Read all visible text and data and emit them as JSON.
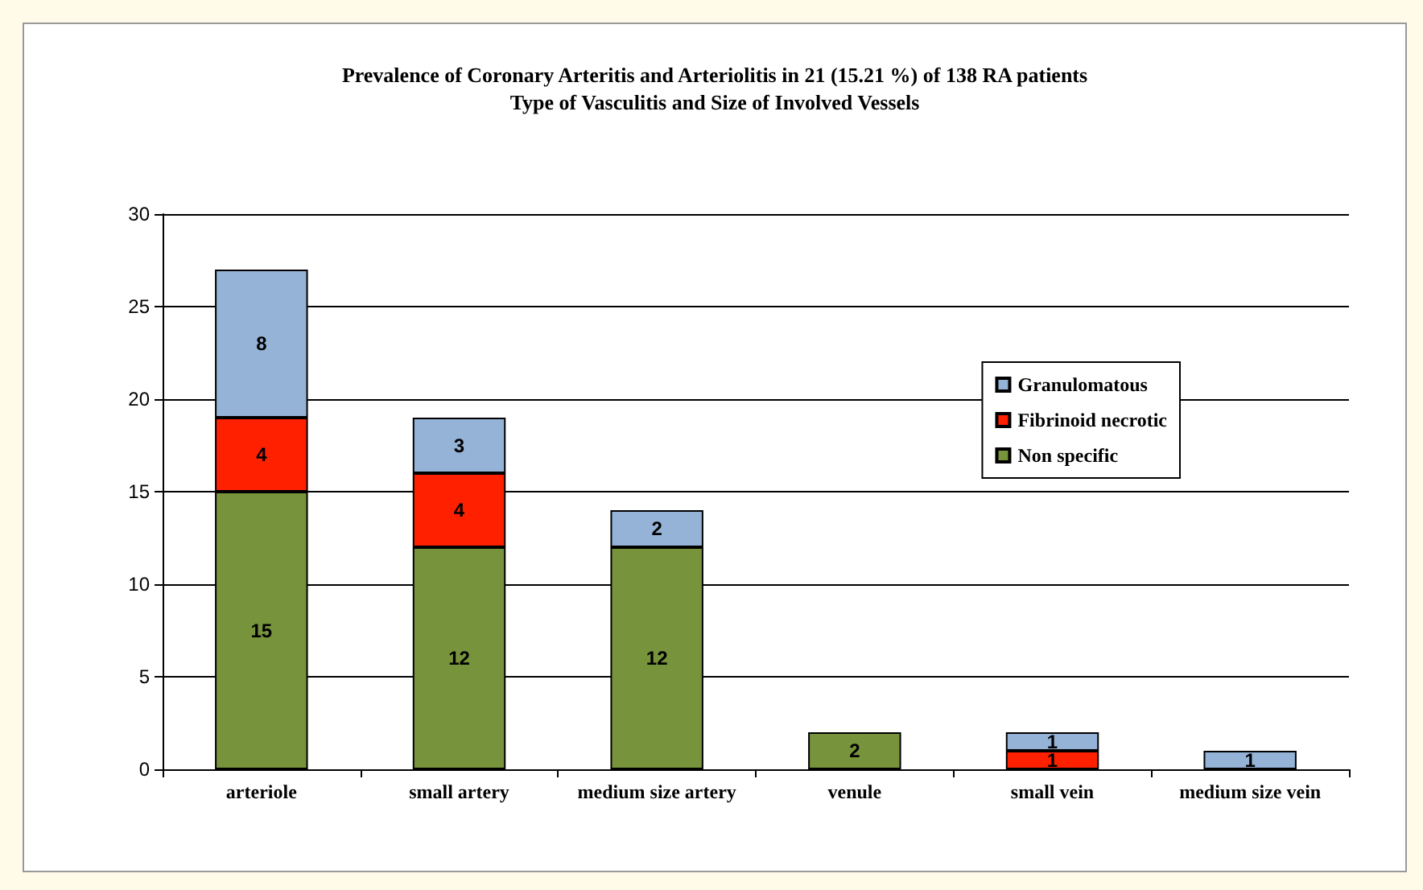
{
  "chart_data": {
    "type": "bar",
    "title": "Prevalence of Coronary Arteritis and Arteriolitis in 21 (15.21 %) of 138 RA patients",
    "subtitle": "Type of Vasculitis and Size of Involved Vessels",
    "categories": [
      "arteriole",
      "small artery",
      "medium size artery",
      "venule",
      "small vein",
      "medium size vein"
    ],
    "stacked": true,
    "series": [
      {
        "name": "Non specific",
        "color": "#77933c",
        "values": [
          15,
          12,
          12,
          2,
          0,
          0
        ],
        "value_labels": [
          "15",
          "12",
          "12",
          "2",
          null,
          null
        ]
      },
      {
        "name": "Fibrinoid necrotic",
        "color": "#ff2000",
        "values": [
          4,
          4,
          0,
          0,
          1,
          0
        ],
        "value_labels": [
          "4",
          "4",
          null,
          null,
          "1",
          null
        ]
      },
      {
        "name": "Granulomatous",
        "color": "#95b3d7",
        "values": [
          8,
          3,
          2,
          0,
          1,
          1
        ],
        "value_labels": [
          "8",
          "3",
          "2",
          null,
          "1",
          "1"
        ]
      }
    ],
    "ylim": [
      0,
      30
    ],
    "yticks": [
      0,
      5,
      10,
      15,
      20,
      25,
      30
    ],
    "grid": "y",
    "legend": "right"
  }
}
